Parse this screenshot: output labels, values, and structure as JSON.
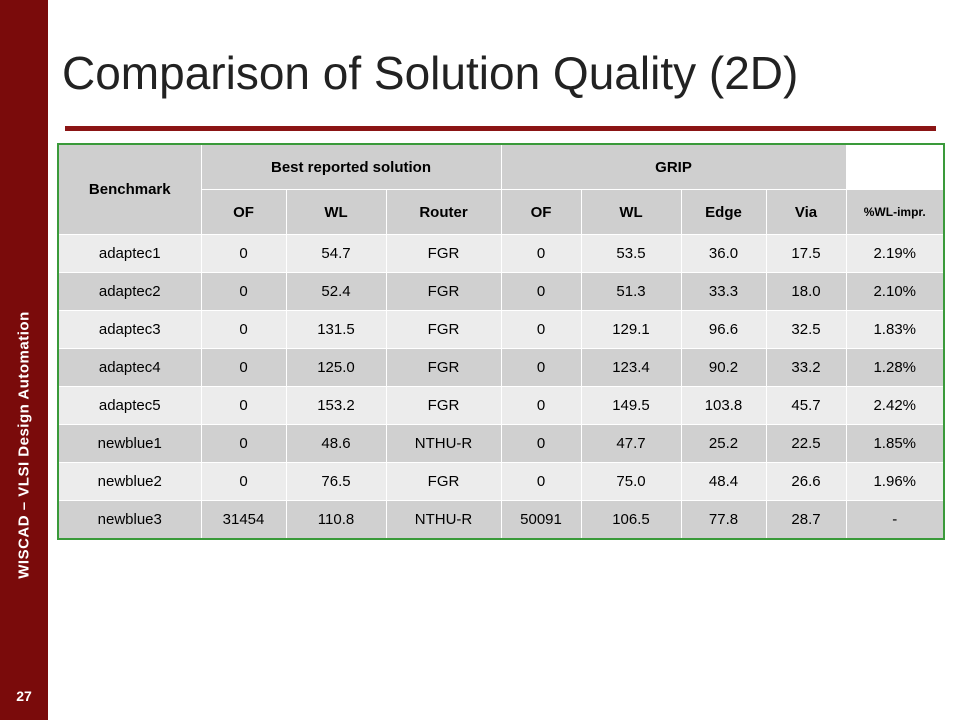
{
  "sidebar": {
    "label": "WISCAD – VLSI Design Automation",
    "page_number": "27"
  },
  "title": "Comparison of Solution Quality (2D)",
  "table": {
    "groups": [
      "Benchmark",
      "Best reported solution",
      "GRIP"
    ],
    "columns": [
      "OF",
      "WL",
      "Router",
      "OF",
      "WL",
      "Edge",
      "Via",
      "%WL-impr."
    ],
    "rows": [
      [
        "adaptec1",
        "0",
        "54.7",
        "FGR",
        "0",
        "53.5",
        "36.0",
        "17.5",
        "2.19%"
      ],
      [
        "adaptec2",
        "0",
        "52.4",
        "FGR",
        "0",
        "51.3",
        "33.3",
        "18.0",
        "2.10%"
      ],
      [
        "adaptec3",
        "0",
        "131.5",
        "FGR",
        "0",
        "129.1",
        "96.6",
        "32.5",
        "1.83%"
      ],
      [
        "adaptec4",
        "0",
        "125.0",
        "FGR",
        "0",
        "123.4",
        "90.2",
        "33.2",
        "1.28%"
      ],
      [
        "adaptec5",
        "0",
        "153.2",
        "FGR",
        "0",
        "149.5",
        "103.8",
        "45.7",
        "2.42%"
      ],
      [
        "newblue1",
        "0",
        "48.6",
        "NTHU-R",
        "0",
        "47.7",
        "25.2",
        "22.5",
        "1.85%"
      ],
      [
        "newblue2",
        "0",
        "76.5",
        "FGR",
        "0",
        "75.0",
        "48.4",
        "26.6",
        "1.96%"
      ],
      [
        "newblue3",
        "31454",
        "110.8",
        "NTHU-R",
        "50091",
        "106.5",
        "77.8",
        "28.7",
        "-"
      ]
    ]
  }
}
